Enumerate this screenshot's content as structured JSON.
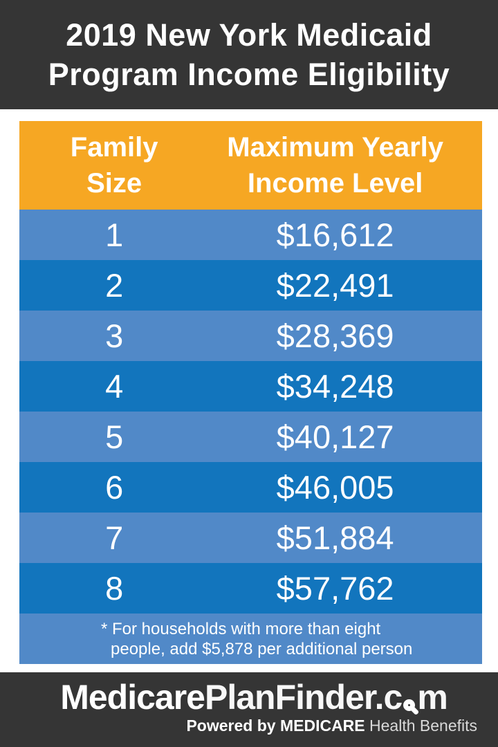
{
  "header": {
    "title_line1": "2019 New York Medicaid",
    "title_line2": "Program Income Eligibility"
  },
  "table": {
    "columns": [
      {
        "line1": "Family",
        "line2": "Size"
      },
      {
        "line1": "Maximum Yearly",
        "line2": "Income Level"
      }
    ],
    "rows": [
      {
        "size": "1",
        "income": "$16,612"
      },
      {
        "size": "2",
        "income": "$22,491"
      },
      {
        "size": "3",
        "income": "$28,369"
      },
      {
        "size": "4",
        "income": "$34,248"
      },
      {
        "size": "5",
        "income": "$40,127"
      },
      {
        "size": "6",
        "income": "$46,005"
      },
      {
        "size": "7",
        "income": "$51,884"
      },
      {
        "size": "8",
        "income": "$57,762"
      }
    ],
    "footnote_line1": "* For households with more than eight",
    "footnote_line2": "people, add $5,878 per additional person"
  },
  "footer": {
    "logo_medicare": "Medicare",
    "logo_planfinder": "PlanFinder",
    "logo_dotc": ".c",
    "logo_m": "m",
    "magnifier_icon": "magnifier-icon",
    "tagline_powered": "Powered by ",
    "tagline_brand": "MEDICARE",
    "tagline_rest": " Health Benefits"
  },
  "colors": {
    "banner_bg": "#353535",
    "table_header_bg": "#F6A723",
    "row_light_blue": "#5189C8",
    "row_dark_blue": "#1275BD",
    "footer_bg": "#353535",
    "text": "#FFFFFF"
  },
  "chart_data": {
    "type": "table",
    "title": "2019 New York Medicaid Program Income Eligibility",
    "columns": [
      "Family Size",
      "Maximum Yearly Income Level"
    ],
    "rows": [
      {
        "family_size": 1,
        "max_yearly_income_usd": 16612
      },
      {
        "family_size": 2,
        "max_yearly_income_usd": 22491
      },
      {
        "family_size": 3,
        "max_yearly_income_usd": 28369
      },
      {
        "family_size": 4,
        "max_yearly_income_usd": 34248
      },
      {
        "family_size": 5,
        "max_yearly_income_usd": 40127
      },
      {
        "family_size": 6,
        "max_yearly_income_usd": 46005
      },
      {
        "family_size": 7,
        "max_yearly_income_usd": 51884
      },
      {
        "family_size": 8,
        "max_yearly_income_usd": 57762
      }
    ],
    "footnote": "* For households with more than eight people, add $5,878 per additional person",
    "per_additional_person_usd": 5878
  }
}
